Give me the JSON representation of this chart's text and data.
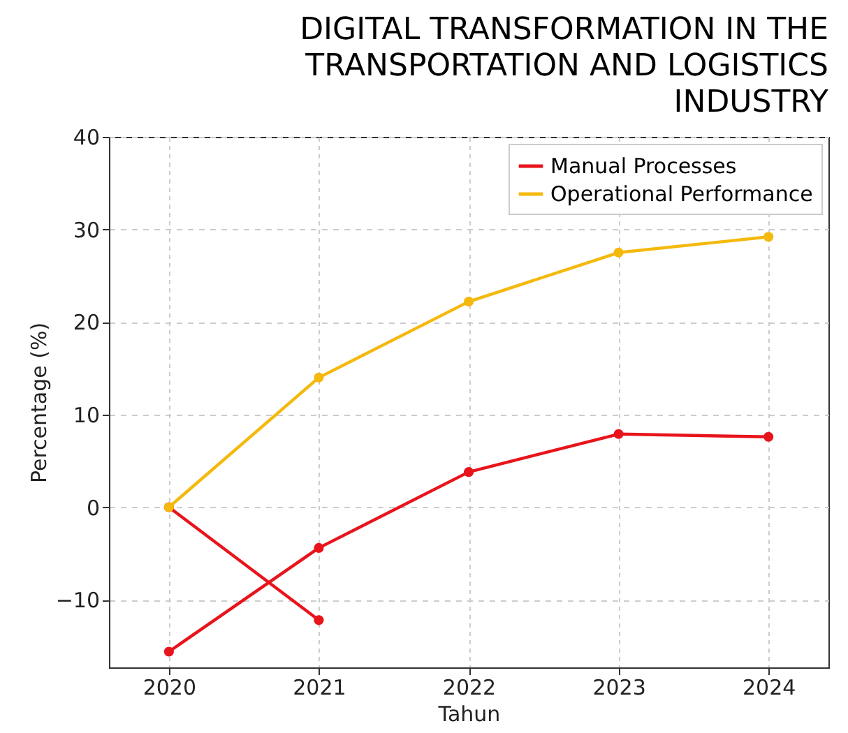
{
  "chart_data": {
    "type": "line",
    "title": "DIGITAL TRANSFORMATION IN THE\nTRANSPORTATION AND LOGISTICS\nINDUSTRY",
    "xlabel": "Tahun",
    "ylabel": "Percentage (%)",
    "x": [
      2020,
      2021,
      2022,
      2023,
      2024
    ],
    "series": [
      {
        "name": "Manual Processes",
        "color": "#e8141c",
        "values": [
          -15.6,
          -4.4,
          3.8,
          7.9,
          7.6
        ]
      },
      {
        "color": "#e8141c",
        "x": [
          2020,
          2021
        ],
        "values": [
          0,
          -12.2
        ]
      },
      {
        "name": "Operational Performance",
        "color": "#f4b90c",
        "values": [
          0,
          14.0,
          22.2,
          27.5,
          29.2
        ]
      }
    ],
    "xlim": [
      2019.6,
      2024.4
    ],
    "xticks": [
      2020,
      2021,
      2022,
      2023,
      2024
    ],
    "ylim": [
      -17.3,
      40
    ],
    "yticks": [
      -10,
      0,
      10,
      20,
      30,
      40
    ],
    "grid": true,
    "legend": "top right",
    "marker": "circle",
    "line_style": "solid"
  }
}
